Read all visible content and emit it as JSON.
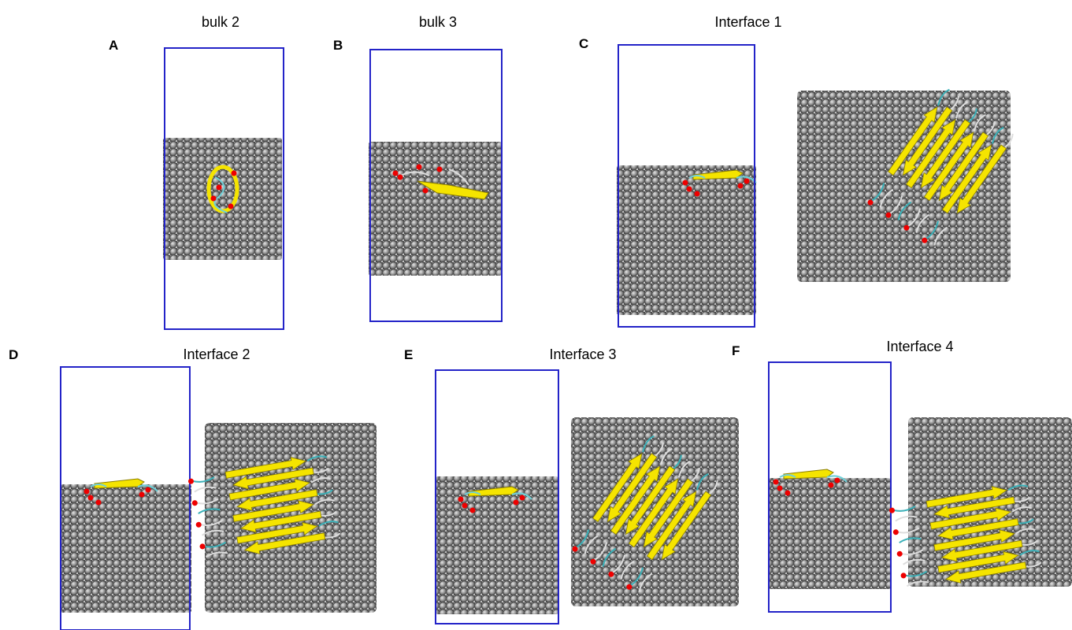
{
  "panels": [
    {
      "letter": "A",
      "title": "bulk 2"
    },
    {
      "letter": "B",
      "title": "bulk 3"
    },
    {
      "letter": "C",
      "title": "Interface 1"
    },
    {
      "letter": "D",
      "title": "Interface 2"
    },
    {
      "letter": "E",
      "title": "Interface 3"
    },
    {
      "letter": "F",
      "title": "Interface 4"
    }
  ]
}
